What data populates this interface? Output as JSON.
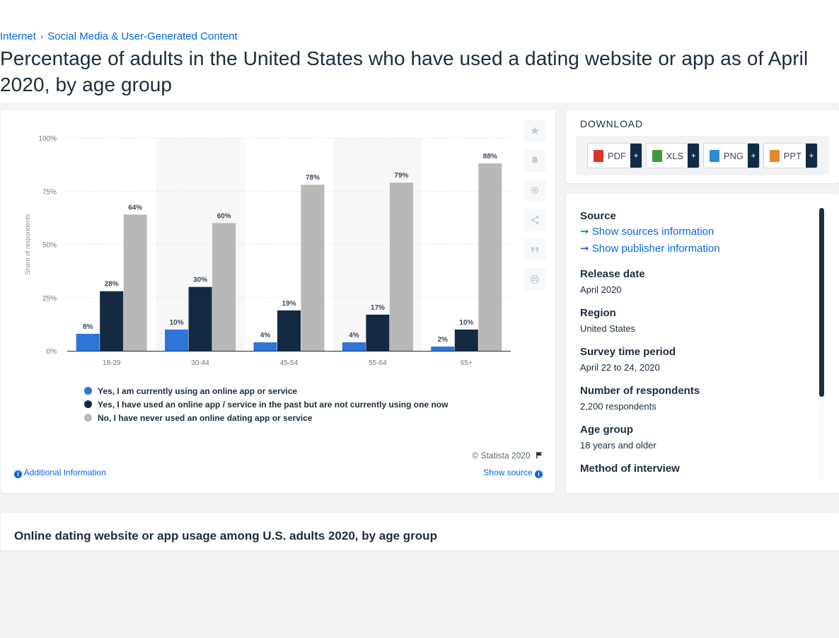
{
  "breadcrumb": {
    "items": [
      "Internet",
      "Social Media & User-Generated Content"
    ],
    "separator": "›"
  },
  "title": "Percentage of adults in the United States who have used a dating website or app as of April 2020, by age group",
  "chart_data": {
    "type": "bar",
    "categories": [
      "18-29",
      "30-44",
      "45-54",
      "55-64",
      "65+"
    ],
    "series": [
      {
        "name": "Yes, I am currently using an online app or service",
        "values": [
          8,
          10,
          4,
          4,
          2
        ],
        "color": "#2f74d9"
      },
      {
        "name": "Yes, I have used an online app / service in the past but are not currently using one now",
        "values": [
          28,
          30,
          19,
          17,
          10
        ],
        "color": "#142a42"
      },
      {
        "name": "No, I have never used an online dating app or service",
        "values": [
          64,
          60,
          78,
          79,
          88
        ],
        "color": "#b8b8b8"
      }
    ],
    "ylabel": "Share of respondents",
    "ylim": [
      0,
      100
    ],
    "yticks": [
      "0%",
      "25%",
      "50%",
      "75%",
      "100%"
    ],
    "ytick_values": [
      0,
      25,
      50,
      75,
      100
    ],
    "value_suffix": "%",
    "grid": true,
    "legend_position": "bottom"
  },
  "chart_footer": {
    "copyright": "© Statista 2020",
    "additional_info": "Additional Information",
    "show_source": "Show source"
  },
  "tools": [
    "star-icon",
    "bell-icon",
    "gear-icon",
    "share-icon",
    "quote-icon",
    "print-icon"
  ],
  "download": {
    "title": "DOWNLOAD",
    "formats": [
      {
        "label": "PDF",
        "color": "#d9342b"
      },
      {
        "label": "XLS",
        "color": "#3f9b3a"
      },
      {
        "label": "PNG",
        "color": "#2d8bd0"
      },
      {
        "label": "PPT",
        "color": "#e8872a"
      }
    ],
    "plus": "+"
  },
  "info": {
    "source_label": "Source",
    "show_sources": "Show sources information",
    "show_publisher": "Show publisher information",
    "release_label": "Release date",
    "release_value": "April 2020",
    "region_label": "Region",
    "region_value": "United States",
    "survey_label": "Survey time period",
    "survey_value": "April 22 to 24, 2020",
    "respondents_label": "Number of respondents",
    "respondents_value": "2,200 respondents",
    "age_label": "Age group",
    "age_value": "18 years and older",
    "method_label": "Method of interview"
  },
  "related": {
    "title": "Online dating website or app usage among U.S. adults 2020, by age group"
  }
}
